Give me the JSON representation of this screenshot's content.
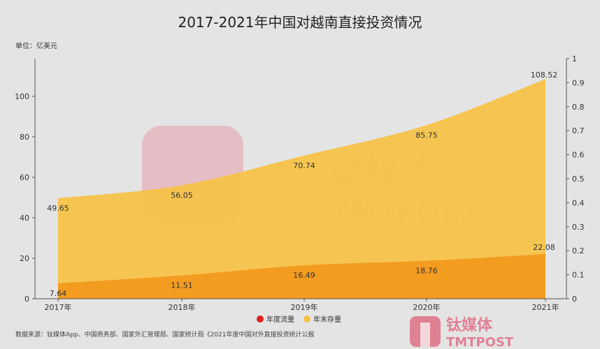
{
  "chart_data": {
    "type": "area",
    "title": "2017-2021年中国对越南直接投资情况",
    "unit_label": "单位：亿美元",
    "categories": [
      "2017年",
      "2018年",
      "2019年",
      "2020年",
      "2021年"
    ],
    "series": [
      {
        "name": "年末存量",
        "values": [
          49.65,
          56.05,
          70.74,
          85.75,
          108.52
        ],
        "color": "#f7c244"
      },
      {
        "name": "年度流量",
        "values": [
          7.64,
          11.51,
          16.49,
          18.76,
          22.08
        ],
        "color": "#f39a1e"
      }
    ],
    "legend": [
      {
        "name": "年度流量",
        "color": "#e0201b"
      },
      {
        "name": "年末存量",
        "color": "#f7c244"
      }
    ],
    "legend_position": "bottom",
    "y_left": {
      "ticks": [
        0,
        20,
        40,
        60,
        80,
        100
      ],
      "range": [
        0,
        118.6
      ]
    },
    "y_right": {
      "ticks": [
        "0",
        "0.1",
        "0.2",
        "0.3",
        "0.4",
        "0.5",
        "0.6",
        "0.7",
        "0.8",
        "0.9",
        "1"
      ],
      "range": [
        0,
        1
      ]
    },
    "grid": false
  },
  "source": "数据来源：钛媒体App、中国商务部、国家外汇管理局、国家统计局《2021年度中国对外直接投资统计公报",
  "watermark": {
    "cn": "钛媒体",
    "en": "TMTPOST"
  }
}
